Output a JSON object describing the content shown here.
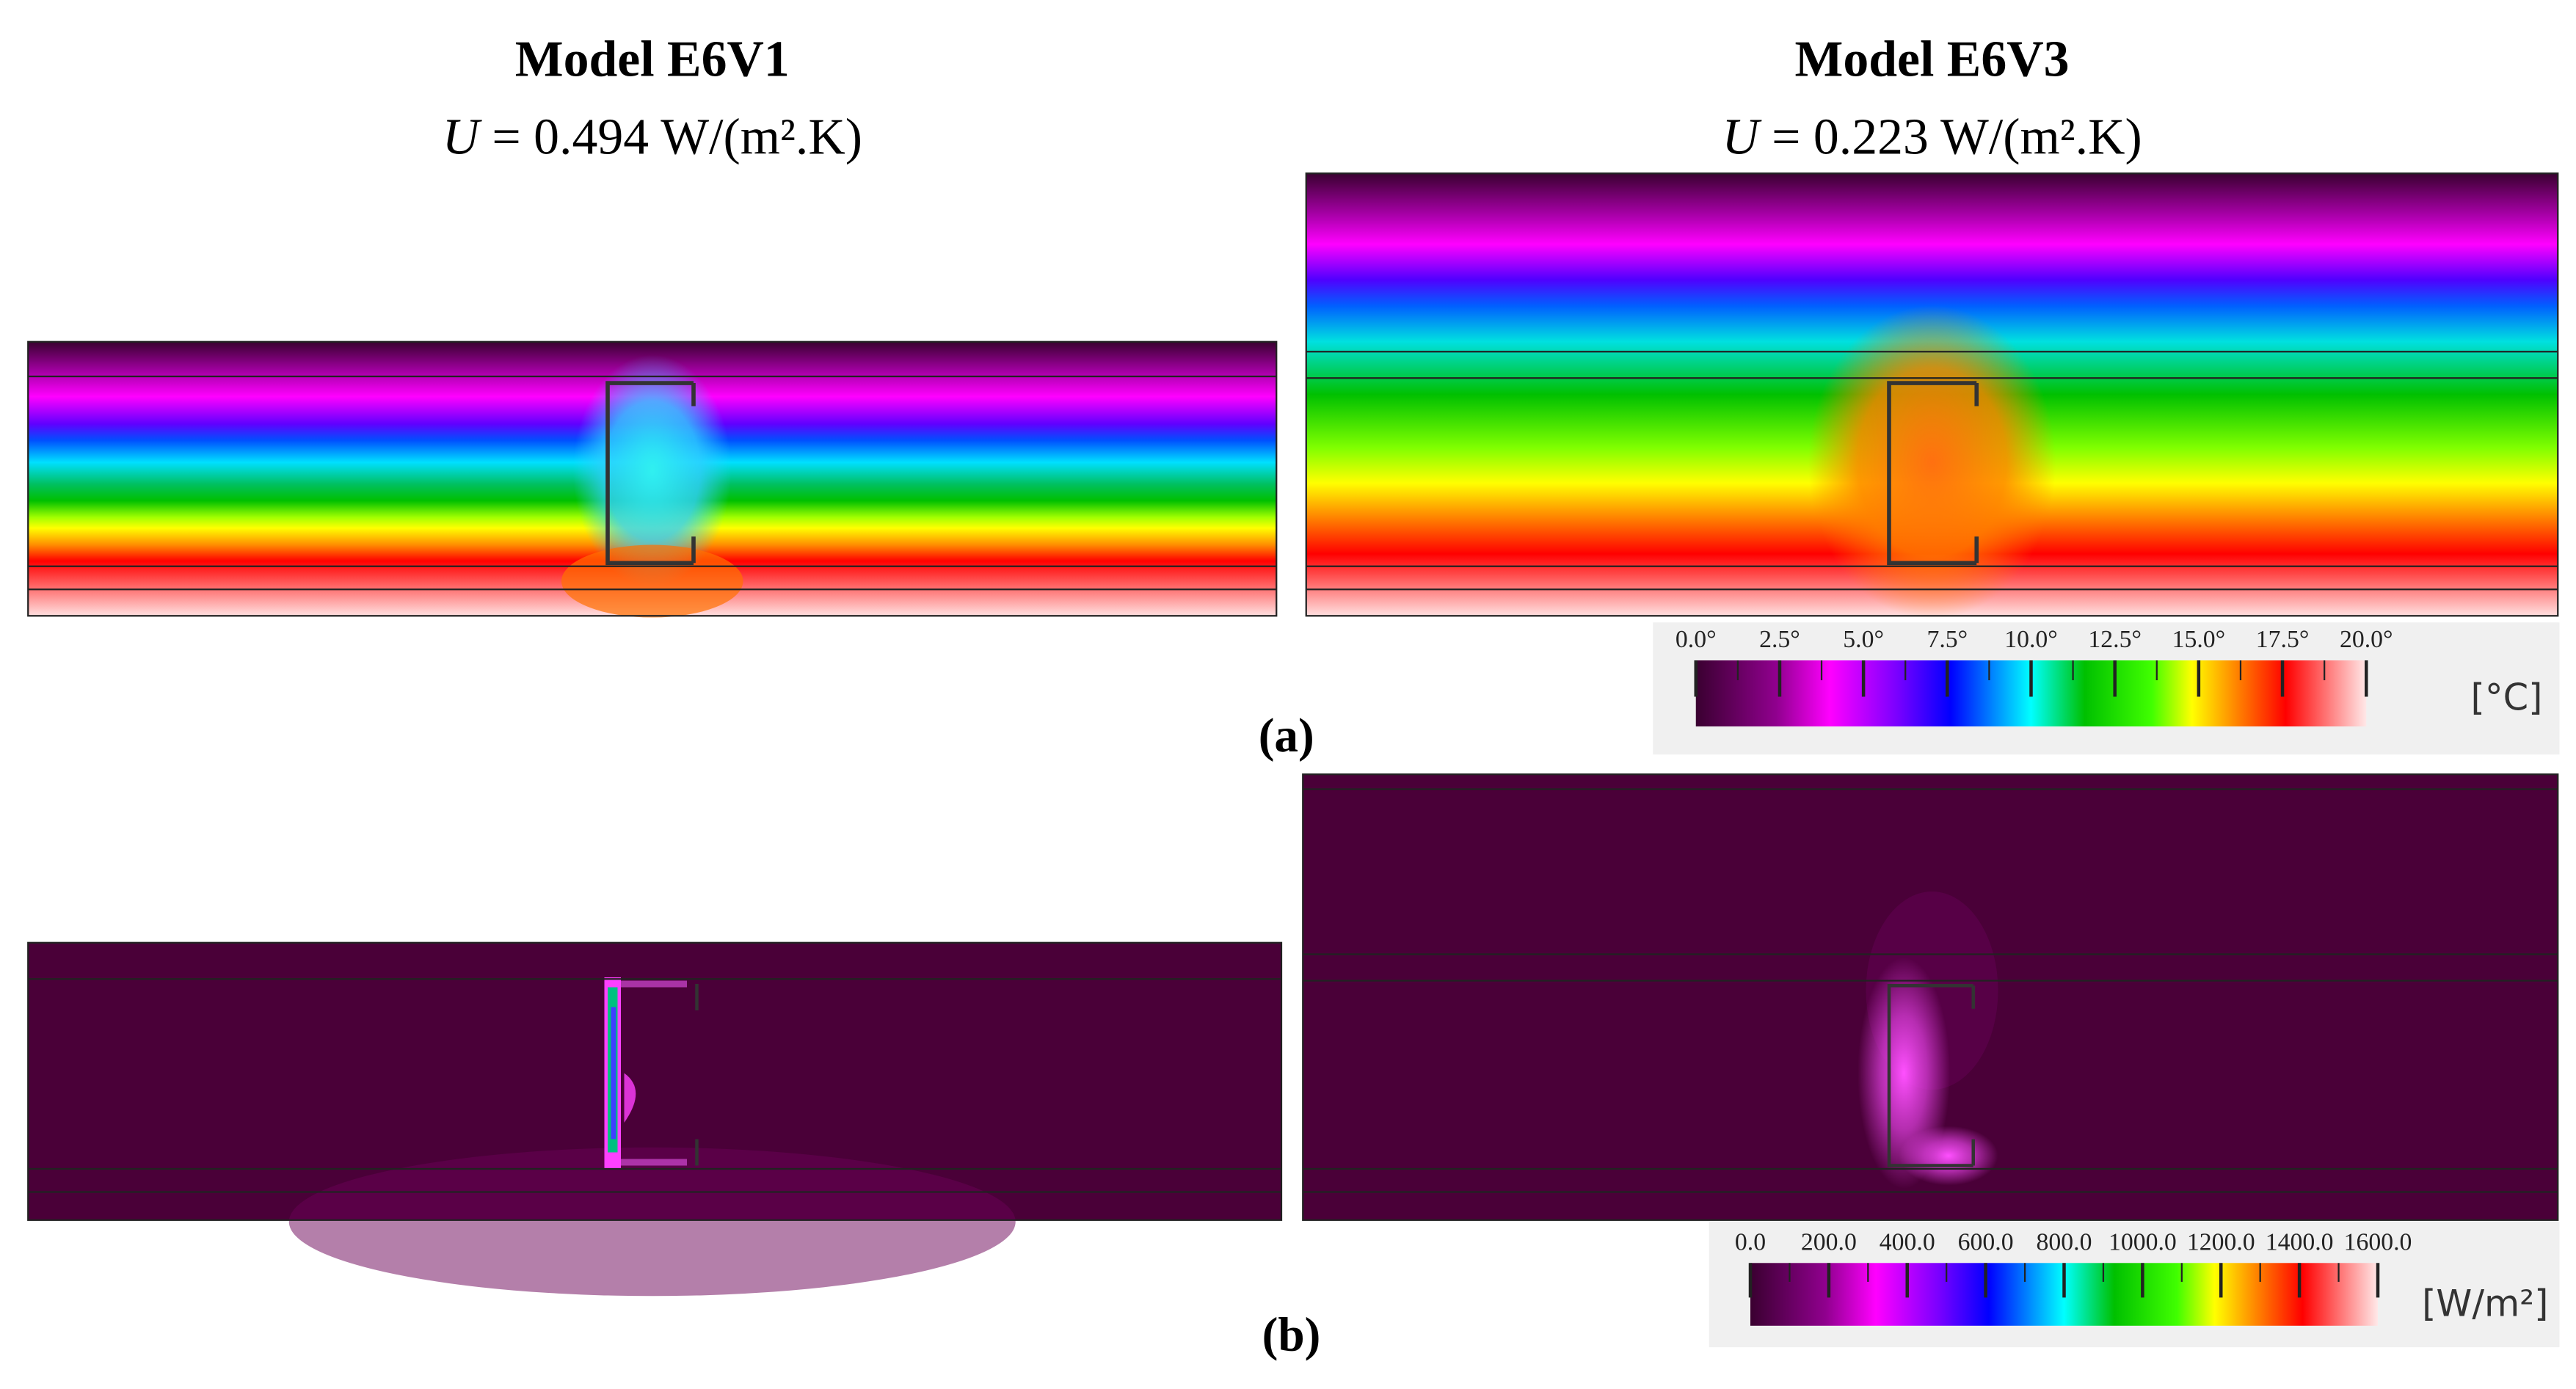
{
  "models": [
    {
      "title": "Model E6V1",
      "u_symbol": "U",
      "u_value": " = 0.494 W/(m².K)"
    },
    {
      "title": "Model E6V3",
      "u_symbol": "U",
      "u_value": " = 0.223 W/(m².K)"
    }
  ],
  "panels": [
    {
      "label": "(a)",
      "colorbar": {
        "ticks": [
          "0.0°",
          "2.5°",
          "5.0°",
          "7.5°",
          "10.0°",
          "12.5°",
          "15.0°",
          "17.5°",
          "20.0°"
        ],
        "unit": "[°C]"
      }
    },
    {
      "label": "(b)",
      "colorbar": {
        "ticks": [
          "0.0",
          "200.0",
          "400.0",
          "600.0",
          "800.0",
          "1000.0",
          "1200.0",
          "1400.0",
          "1600.0"
        ],
        "unit": "[W/m²]"
      }
    }
  ]
}
